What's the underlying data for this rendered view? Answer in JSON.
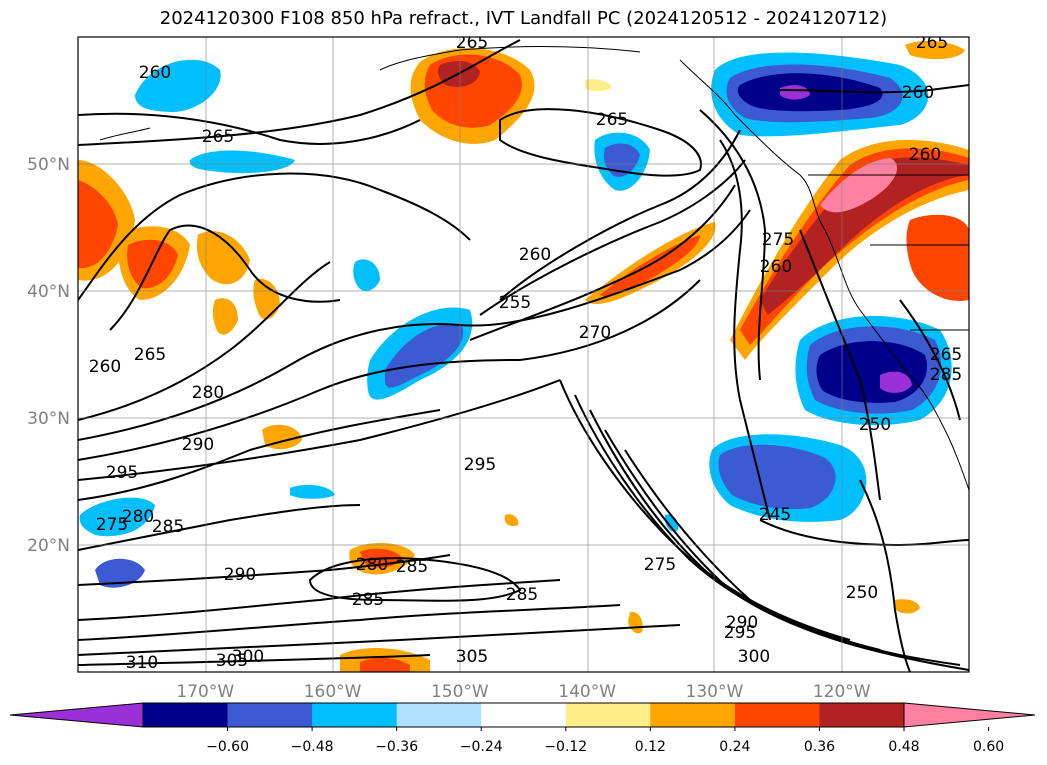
{
  "title": "2024120300 F108 850 hPa refract., IVT Landfall PC (2024120512 - 2024120712)",
  "map": {
    "lon_range": [
      -180,
      -110
    ],
    "lat_range": [
      10,
      60
    ],
    "lon_ticks": [
      {
        "lon": -170,
        "label": "170°W"
      },
      {
        "lon": -160,
        "label": "160°W"
      },
      {
        "lon": -150,
        "label": "150°W"
      },
      {
        "lon": -140,
        "label": "140°W"
      },
      {
        "lon": -130,
        "label": "130°W"
      },
      {
        "lon": -120,
        "label": "120°W"
      }
    ],
    "lat_ticks": [
      {
        "lat": 50,
        "label": "50°N"
      },
      {
        "lat": 40,
        "label": "40°N"
      },
      {
        "lat": 30,
        "label": "30°N"
      },
      {
        "lat": 20,
        "label": "20°N"
      }
    ],
    "grid": true,
    "contour_labels": [
      "260",
      "265",
      "265",
      "265",
      "260",
      "265",
      "260",
      "255",
      "270",
      "275",
      "260",
      "260",
      "265",
      "280",
      "290",
      "295",
      "275",
      "280",
      "285",
      "290",
      "280",
      "285",
      "285",
      "295",
      "285",
      "275",
      "245",
      "250",
      "250",
      "260",
      "265",
      "290",
      "295",
      "300",
      "285",
      "310",
      "305",
      "300",
      "305"
    ]
  },
  "colorbar": {
    "colors": [
      "#9b30d9",
      "#00008b",
      "#3c5ad2",
      "#00bfff",
      "#aee0ff",
      "#ffffff",
      "#ffee88",
      "#ffa500",
      "#ff4500",
      "#b22222",
      "#ff80a0"
    ],
    "tick_labels": [
      "−0.60",
      "−0.48",
      "−0.36",
      "−0.24",
      "−0.12",
      "0.12",
      "0.24",
      "0.36",
      "0.48",
      "0.60"
    ],
    "extend": "both"
  }
}
